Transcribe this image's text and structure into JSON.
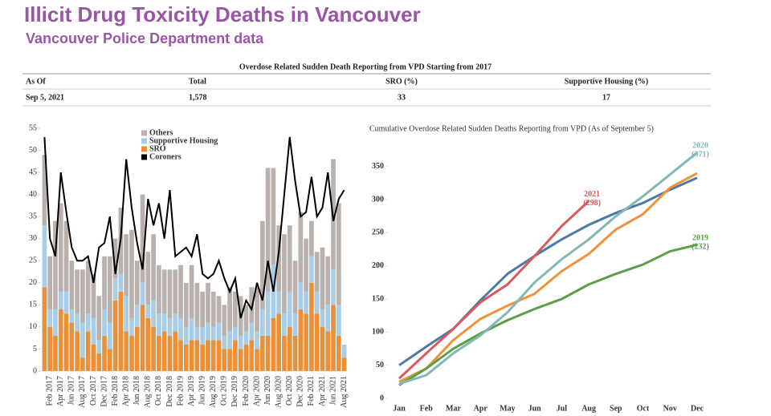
{
  "header": {
    "title": "Illicit Drug Toxicity Deaths in Vancouver",
    "subtitle": "Vancouver Police Department data"
  },
  "table": {
    "title": "Overdose Related Sudden Death Reporting from VPD Starting from 2017",
    "columns": [
      "As Of",
      "Total",
      "SRO (%)",
      "Supportive Housing (%)"
    ],
    "rows": [
      [
        "Sep 5, 2021",
        "1,578",
        "33",
        "17"
      ]
    ]
  },
  "chart_data": [
    {
      "type": "bar",
      "stacked": true,
      "categories": [
        null,
        "Feb 2017",
        null,
        "Apr 2017",
        null,
        "Jun 2017",
        null,
        "Aug 2017",
        null,
        "Oct 2017",
        null,
        "Dec 2017",
        null,
        "Feb 2018",
        null,
        "Apr 2018",
        null,
        "Jun 2018",
        null,
        "Aug 2018",
        null,
        "Oct 2018",
        null,
        "Dec 2018",
        null,
        "Feb 2019",
        null,
        "Apr 2019",
        null,
        "Jun 2019",
        null,
        "Aug 2019",
        null,
        "Oct 2019",
        null,
        "Dec 2019",
        null,
        "Feb 2020",
        null,
        "Apr 2020",
        null,
        "Jun 2020",
        null,
        "Aug 2020",
        null,
        "Oct 2020",
        null,
        "Dec 2020",
        null,
        "Feb 2021",
        null,
        "Apr 2021",
        null,
        "Jun 2021",
        null,
        "Aug 2021"
      ],
      "series": [
        {
          "name": "Others",
          "color": "#b9b1ad",
          "values": [
            16,
            12,
            20,
            20,
            16,
            11,
            10,
            12,
            12,
            10,
            10,
            12,
            15,
            9,
            15,
            14,
            20,
            10,
            20,
            12,
            15,
            11,
            10,
            11,
            10,
            12,
            10,
            12,
            10,
            8,
            9,
            8,
            6,
            7,
            10,
            8,
            9,
            6,
            8,
            10,
            20,
            28,
            22,
            15,
            18,
            15,
            12,
            16,
            12,
            8,
            9,
            14,
            11,
            25,
            23,
            0
          ]
        },
        {
          "name": "Supportive Housing",
          "color": "#a9cde6",
          "values": [
            14,
            4,
            6,
            4,
            5,
            3,
            4,
            8,
            4,
            6,
            3,
            6,
            6,
            5,
            4,
            8,
            4,
            5,
            5,
            3,
            6,
            5,
            4,
            4,
            4,
            5,
            4,
            5,
            3,
            4,
            4,
            3,
            4,
            3,
            4,
            3,
            3,
            3,
            4,
            4,
            6,
            10,
            12,
            5,
            5,
            8,
            5,
            6,
            5,
            6,
            5,
            4,
            6,
            8,
            7,
            3
          ]
        },
        {
          "name": "SRO",
          "color": "#e8913a",
          "values": [
            19,
            10,
            8,
            14,
            13,
            11,
            9,
            3,
            9,
            6,
            4,
            8,
            5,
            16,
            18,
            9,
            8,
            10,
            15,
            12,
            10,
            8,
            9,
            8,
            9,
            7,
            6,
            7,
            7,
            6,
            7,
            7,
            7,
            5,
            5,
            7,
            5,
            6,
            7,
            5,
            8,
            8,
            12,
            13,
            8,
            10,
            8,
            14,
            13,
            20,
            13,
            10,
            9,
            15,
            8,
            3
          ]
        },
        {
          "name": "Coroners",
          "color": "#000000",
          "kind": "line",
          "values": [
            53,
            30,
            26,
            45,
            36,
            28,
            25,
            25,
            26,
            20,
            28,
            29,
            35,
            22,
            30,
            48,
            37,
            29,
            23,
            39,
            33,
            38,
            30,
            41,
            26,
            27,
            28,
            26,
            31,
            22,
            21,
            22,
            25,
            21,
            18,
            21,
            12,
            16,
            14,
            20,
            16,
            25,
            18,
            27,
            40,
            53,
            43,
            35,
            36,
            44,
            35,
            37,
            45,
            34,
            39,
            41
          ]
        }
      ],
      "ylim": [
        0,
        55
      ],
      "yticks": [
        0,
        5,
        10,
        15,
        20,
        25,
        30,
        35,
        40,
        45,
        50,
        55
      ]
    },
    {
      "type": "line",
      "title": "Cumulative Overdose Related Sudden Deaths Reporting from VPD (As of September 5)",
      "categories": [
        "Jan",
        "Feb",
        "Mar",
        "Apr",
        "May",
        "Jun",
        "Jul",
        "Aug",
        "Sep",
        "Oct",
        "Nov",
        "Dec"
      ],
      "series": [
        {
          "color": "#4e79a7",
          "values": [
            50,
            78,
            105,
            148,
            188,
            215,
            240,
            262,
            280,
            295,
            315,
            333
          ]
        },
        {
          "color": "#f0923c",
          "values": [
            25,
            45,
            88,
            120,
            140,
            158,
            192,
            218,
            255,
            278,
            318,
            340
          ]
        },
        {
          "name": "2019",
          "label": "(232)",
          "color": "#5d9e48",
          "values": [
            20,
            45,
            75,
            98,
            118,
            135,
            150,
            172,
            188,
            202,
            222,
            232
          ]
        },
        {
          "name": "2020",
          "label": "(371)",
          "color": "#7fb8b4",
          "values": [
            22,
            35,
            68,
            95,
            130,
            175,
            210,
            240,
            275,
            305,
            338,
            371
          ]
        },
        {
          "name": "2021",
          "label": "(298)",
          "color": "#d9595d",
          "values": [
            30,
            68,
            105,
            145,
            172,
            215,
            260,
            298,
            null,
            null,
            null,
            null
          ]
        }
      ],
      "ylim": [
        0,
        380
      ],
      "yticks": [
        0,
        50,
        100,
        150,
        200,
        250,
        300,
        350
      ]
    }
  ]
}
